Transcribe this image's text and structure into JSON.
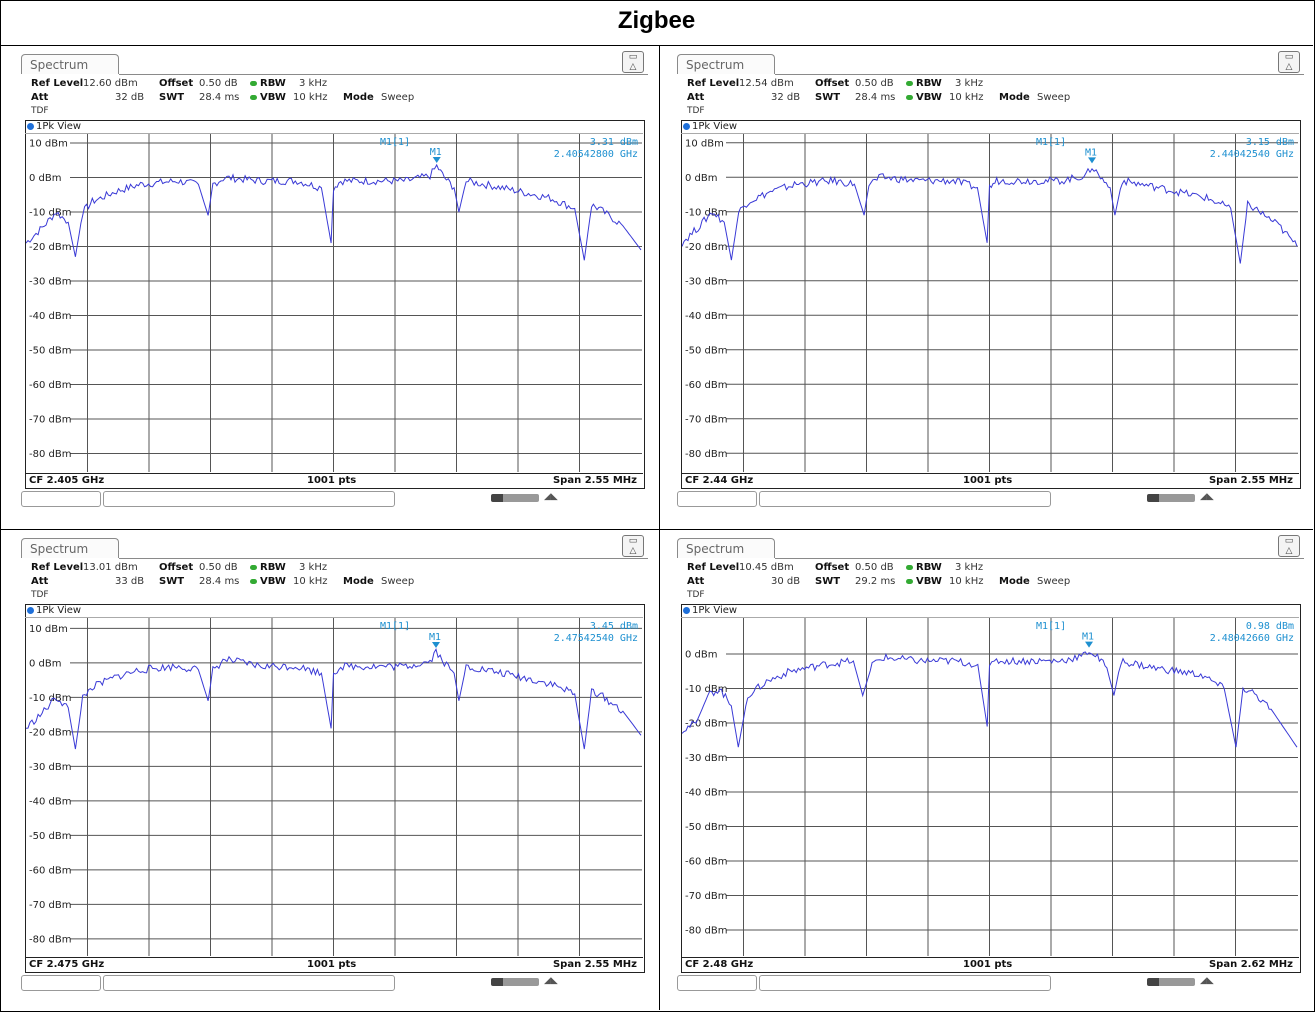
{
  "title": "Zigbee",
  "panels": [
    {
      "tab": "Spectrum",
      "ref_level_label": "Ref Level",
      "ref_level": "12.60 dBm",
      "offset_label": "Offset",
      "offset": "0.50 dB",
      "rbw_label": "RBW",
      "rbw": "3 kHz",
      "att_label": "Att",
      "att": "32 dB",
      "swt_label": "SWT",
      "swt": "28.4 ms",
      "vbw_label": "VBW",
      "vbw": "10 kHz",
      "mode_label": "Mode",
      "mode": "Sweep",
      "tdf": "TDF",
      "view": "1Pk View",
      "marker_label": "M1[1]",
      "marker_short": "M1",
      "marker_level": "3.31 dBm",
      "marker_freq": "2.40542800 GHz",
      "cf": "CF 2.405 GHz",
      "pts": "1001 pts",
      "span": "Span 2.55 MHz"
    },
    {
      "tab": "Spectrum",
      "ref_level_label": "Ref Level",
      "ref_level": "12.54 dBm",
      "offset_label": "Offset",
      "offset": "0.50 dB",
      "rbw_label": "RBW",
      "rbw": "3 kHz",
      "att_label": "Att",
      "att": "32 dB",
      "swt_label": "SWT",
      "swt": "28.4 ms",
      "vbw_label": "VBW",
      "vbw": "10 kHz",
      "mode_label": "Mode",
      "mode": "Sweep",
      "tdf": "TDF",
      "view": "1Pk View",
      "marker_label": "M1[1]",
      "marker_short": "M1",
      "marker_level": "3.15 dBm",
      "marker_freq": "2.44042540 GHz",
      "cf": "CF 2.44 GHz",
      "pts": "1001 pts",
      "span": "Span 2.55 MHz"
    },
    {
      "tab": "Spectrum",
      "ref_level_label": "Ref Level",
      "ref_level": "13.01 dBm",
      "offset_label": "Offset",
      "offset": "0.50 dB",
      "rbw_label": "RBW",
      "rbw": "3 kHz",
      "att_label": "Att",
      "att": "33 dB",
      "swt_label": "SWT",
      "swt": "28.4 ms",
      "vbw_label": "VBW",
      "vbw": "10 kHz",
      "mode_label": "Mode",
      "mode": "Sweep",
      "tdf": "TDF",
      "view": "1Pk View",
      "marker_label": "M1[1]",
      "marker_short": "M1",
      "marker_level": "3.45 dBm",
      "marker_freq": "2.47542540 GHz",
      "cf": "CF 2.475 GHz",
      "pts": "1001 pts",
      "span": "Span 2.55 MHz"
    },
    {
      "tab": "Spectrum",
      "ref_level_label": "Ref Level",
      "ref_level": "10.45 dBm",
      "offset_label": "Offset",
      "offset": "0.50 dB",
      "rbw_label": "RBW",
      "rbw": "3 kHz",
      "att_label": "Att",
      "att": "30 dB",
      "swt_label": "SWT",
      "swt": "29.2 ms",
      "vbw_label": "VBW",
      "vbw": "10 kHz",
      "mode_label": "Mode",
      "mode": "Sweep",
      "tdf": "TDF",
      "view": "1Pk View",
      "marker_label": "M1[1]",
      "marker_short": "M1",
      "marker_level": "0.98 dBm",
      "marker_freq": "2.48042660 GHz",
      "cf": "CF 2.48 GHz",
      "pts": "1001 pts",
      "span": "Span 2.62 MHz"
    }
  ],
  "chart_data": [
    {
      "type": "line",
      "title": "",
      "xlabel": "",
      "ylabel": "",
      "ref_level_dbm": 12.6,
      "ytick_labels": [
        "10 dBm",
        "0 dBm",
        "-10 dBm",
        "-20 dBm",
        "-30 dBm",
        "-40 dBm",
        "-50 dBm",
        "-60 dBm",
        "-70 dBm",
        "-80 dBm"
      ],
      "ytick_values": [
        10,
        0,
        -10,
        -20,
        -30,
        -40,
        -50,
        -60,
        -70,
        -80
      ],
      "xlim_mhz": [
        -1.275,
        1.275
      ],
      "grid": true,
      "trace_color": "#3a3ad6",
      "marker": {
        "x_mhz": 0.428,
        "y_dbm": 3.31
      },
      "series": [
        {
          "x_mhz": [
            -1.275,
            -1.2,
            -1.15,
            -1.1,
            -1.07,
            -1.04,
            -1.0,
            -0.9,
            -0.8,
            -0.65,
            -0.56,
            -0.52,
            -0.5,
            -0.45,
            -0.3,
            -0.15,
            -0.05,
            -0.01,
            0.0,
            0.03,
            0.1,
            0.3,
            0.4,
            0.428,
            0.46,
            0.5,
            0.52,
            0.55,
            0.7,
            0.9,
            1.0,
            1.04,
            1.07,
            1.1,
            1.2,
            1.275
          ],
          "y_dbm": [
            -19,
            -14,
            -10,
            -13,
            -23,
            -10,
            -7,
            -4,
            -2,
            -1,
            -2,
            -11,
            -2,
            0,
            -1,
            -1,
            -3,
            -19,
            -3,
            -1,
            -1,
            -1,
            0.5,
            3.31,
            0,
            -3,
            -10,
            -1,
            -3,
            -6,
            -9,
            -24,
            -8,
            -9,
            -14,
            -21
          ]
        }
      ]
    },
    {
      "type": "line",
      "title": "",
      "xlabel": "",
      "ylabel": "",
      "ref_level_dbm": 12.54,
      "ytick_labels": [
        "10 dBm",
        "0 dBm",
        "-10 dBm",
        "-20 dBm",
        "-30 dBm",
        "-40 dBm",
        "-50 dBm",
        "-60 dBm",
        "-70 dBm",
        "-80 dBm"
      ],
      "ytick_values": [
        10,
        0,
        -10,
        -20,
        -30,
        -40,
        -50,
        -60,
        -70,
        -80
      ],
      "xlim_mhz": [
        -1.275,
        1.275
      ],
      "grid": true,
      "trace_color": "#3a3ad6",
      "marker": {
        "x_mhz": 0.425,
        "y_dbm": 3.15
      },
      "series": [
        {
          "x_mhz": [
            -1.275,
            -1.2,
            -1.15,
            -1.1,
            -1.07,
            -1.04,
            -1.0,
            -0.9,
            -0.8,
            -0.65,
            -0.56,
            -0.52,
            -0.5,
            -0.45,
            -0.3,
            -0.15,
            -0.05,
            -0.01,
            0.0,
            0.03,
            0.1,
            0.3,
            0.4,
            0.425,
            0.46,
            0.5,
            0.52,
            0.55,
            0.7,
            0.9,
            1.0,
            1.04,
            1.07,
            1.1,
            1.2,
            1.275
          ],
          "y_dbm": [
            -19,
            -14,
            -10,
            -13,
            -24,
            -10,
            -7,
            -4,
            -2,
            -1,
            -2,
            -11,
            -2,
            0,
            -1,
            -1,
            -3,
            -19,
            -3,
            -1,
            -1,
            -1,
            0.5,
            3.15,
            0,
            -3,
            -11,
            -1,
            -3,
            -6,
            -9,
            -25,
            -8,
            -9,
            -14,
            -20
          ]
        }
      ]
    },
    {
      "type": "line",
      "title": "",
      "xlabel": "",
      "ylabel": "",
      "ref_level_dbm": 13.01,
      "ytick_labels": [
        "10 dBm",
        "0 dBm",
        "-10 dBm",
        "-20 dBm",
        "-30 dBm",
        "-40 dBm",
        "-50 dBm",
        "-60 dBm",
        "-70 dBm",
        "-80 dBm"
      ],
      "ytick_values": [
        10,
        0,
        -10,
        -20,
        -30,
        -40,
        -50,
        -60,
        -70,
        -80
      ],
      "xlim_mhz": [
        -1.275,
        1.275
      ],
      "grid": true,
      "trace_color": "#3a3ad6",
      "marker": {
        "x_mhz": 0.425,
        "y_dbm": 3.45
      },
      "series": [
        {
          "x_mhz": [
            -1.275,
            -1.2,
            -1.15,
            -1.1,
            -1.07,
            -1.04,
            -1.0,
            -0.9,
            -0.8,
            -0.65,
            -0.56,
            -0.52,
            -0.5,
            -0.45,
            -0.3,
            -0.15,
            -0.05,
            -0.01,
            0.0,
            0.03,
            0.1,
            0.3,
            0.4,
            0.425,
            0.46,
            0.5,
            0.52,
            0.55,
            0.7,
            0.9,
            1.0,
            1.04,
            1.07,
            1.1,
            1.2,
            1.275
          ],
          "y_dbm": [
            -19,
            -14,
            -10,
            -13,
            -25,
            -10,
            -7,
            -4,
            -2,
            -1,
            -2,
            -11,
            -2,
            1,
            -1,
            -1,
            -3,
            -19,
            -3,
            -1,
            -1,
            -1,
            0.5,
            3.45,
            0,
            -3,
            -11,
            -1,
            -3,
            -6,
            -9,
            -25,
            -8,
            -9,
            -14,
            -21
          ]
        }
      ]
    },
    {
      "type": "line",
      "title": "",
      "xlabel": "",
      "ylabel": "",
      "ref_level_dbm": 10.45,
      "ytick_labels": [
        "0 dBm",
        "-10 dBm",
        "-20 dBm",
        "-30 dBm",
        "-40 dBm",
        "-50 dBm",
        "-60 dBm",
        "-70 dBm",
        "-80 dBm"
      ],
      "ytick_values": [
        0,
        -10,
        -20,
        -30,
        -40,
        -50,
        -60,
        -70,
        -80
      ],
      "xlim_mhz": [
        -1.31,
        1.31
      ],
      "grid": true,
      "trace_color": "#3a3ad6",
      "marker": {
        "x_mhz": 0.424,
        "y_dbm": 0.98
      },
      "series": [
        {
          "x_mhz": [
            -1.31,
            -1.25,
            -1.2,
            -1.15,
            -1.1,
            -1.07,
            -1.03,
            -0.95,
            -0.85,
            -0.7,
            -0.58,
            -0.54,
            -0.5,
            -0.45,
            -0.3,
            -0.15,
            -0.05,
            -0.01,
            0.0,
            0.03,
            0.1,
            0.3,
            0.4,
            0.424,
            0.46,
            0.5,
            0.53,
            0.56,
            0.7,
            0.9,
            1.0,
            1.05,
            1.08,
            1.12,
            1.2,
            1.31
          ],
          "y_dbm": [
            -22,
            -20,
            -12,
            -10,
            -15,
            -27,
            -12,
            -8,
            -5,
            -3,
            -2,
            -12,
            -3,
            -1,
            -2,
            -2,
            -3,
            -21,
            -4,
            -2,
            -2,
            -2,
            -0.5,
            0.98,
            -1,
            -4,
            -12,
            -2,
            -4,
            -6,
            -10,
            -27,
            -10,
            -11,
            -16,
            -27
          ]
        }
      ]
    }
  ]
}
